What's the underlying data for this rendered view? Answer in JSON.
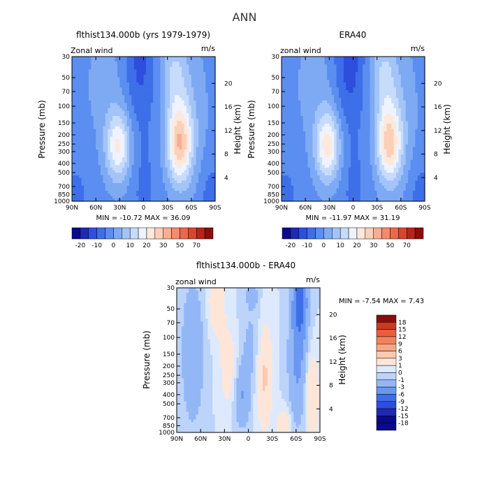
{
  "figure_title": "ANN",
  "colors": {
    "panel_scale": [
      "#0a0a8c",
      "#1e2ab4",
      "#2d4fdc",
      "#3d6fe8",
      "#5b8ef0",
      "#7eaaf4",
      "#a3c4f8",
      "#c7dcfb",
      "#eef3ff",
      "#fde8dc",
      "#fbcfb8",
      "#f8ae91",
      "#f38b6c",
      "#ec684c",
      "#d8452f",
      "#b5251a",
      "#8b0c0c"
    ],
    "diff_scale": [
      "#0a0a8c",
      "#1e2ab4",
      "#2d4fdc",
      "#3d6fe8",
      "#6a97f2",
      "#93b7f6",
      "#bcd3fa",
      "#dde9fd",
      "#fde6d8",
      "#fbcab0",
      "#f8a684",
      "#f2825e",
      "#e95e3e",
      "#c93a25",
      "#8b0c0c"
    ]
  },
  "chart_data": [
    {
      "type": "contour",
      "title": "flthist134.000b (yrs 1979-1979)",
      "corner_left": "Zonal wind",
      "corner_right": "m/s",
      "ylabel": "Pressure (mb)",
      "ylabel_right": "Height (km)",
      "xticks": [
        "90N",
        "60N",
        "30N",
        "0",
        "30S",
        "60S",
        "90S"
      ],
      "yticks": [
        "30",
        "50",
        "70",
        "100",
        "150",
        "200",
        "250",
        "300",
        "400",
        "500",
        "700",
        "850",
        "1000"
      ],
      "yticks_right": [
        "20",
        "16",
        "12",
        "8",
        "4"
      ],
      "stats": "MIN = -10.72   MAX =  36.09",
      "colorbar_labels": [
        "-20",
        "-10",
        "0",
        "10",
        "20",
        "30",
        "50",
        "70"
      ],
      "jets": {
        "north_peak": 22,
        "south_peak": 30,
        "south_lat": -45,
        "north_lat": 32,
        "stratosphere_min": -10.72
      }
    },
    {
      "type": "contour",
      "title": "ERA40",
      "corner_left": "zonal wind",
      "corner_right": "m/s",
      "ylabel": "Pressure (mb)",
      "ylabel_right": "Height (km)",
      "xticks": [
        "90N",
        "60N",
        "30N",
        "0",
        "30S",
        "60S",
        "90S"
      ],
      "yticks": [
        "30",
        "50",
        "70",
        "100",
        "150",
        "200",
        "250",
        "300",
        "400",
        "500",
        "700",
        "850",
        "1000"
      ],
      "yticks_right": [
        "20",
        "16",
        "12",
        "8",
        "4"
      ],
      "stats": "MIN = -11.97   MAX =  31.19",
      "colorbar_labels": [
        "-20",
        "-10",
        "0",
        "10",
        "20",
        "30",
        "50",
        "70"
      ],
      "jets": {
        "north_peak": 24,
        "south_peak": 28,
        "south_lat": -45,
        "north_lat": 32,
        "stratosphere_min": -11.97
      }
    },
    {
      "type": "contour",
      "title": "flthist134.000b - ERA40",
      "corner_left": "zonal wind",
      "corner_right": "m/s",
      "ylabel": "Pressure (mb)",
      "ylabel_right": "Height (km)",
      "xticks": [
        "90N",
        "60N",
        "30N",
        "0",
        "30S",
        "60S",
        "90S"
      ],
      "yticks": [
        "30",
        "50",
        "70",
        "100",
        "150",
        "200",
        "250",
        "300",
        "400",
        "500",
        "700",
        "850",
        "1000"
      ],
      "yticks_right": [
        "20",
        "16",
        "12",
        "8",
        "4"
      ],
      "stats": "MIN =  -7.54   MAX =   7.43",
      "colorbar_labels": [
        "18",
        "15",
        "12",
        "9",
        "6",
        "3",
        "1",
        "0",
        "-1",
        "-3",
        "-6",
        "-9",
        "-12",
        "-15",
        "-18"
      ]
    }
  ]
}
